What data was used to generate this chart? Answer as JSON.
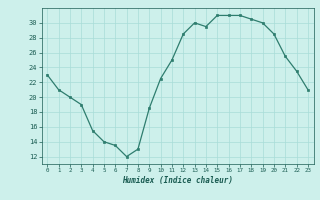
{
  "x": [
    0,
    1,
    2,
    3,
    4,
    5,
    6,
    7,
    8,
    9,
    10,
    11,
    12,
    13,
    14,
    15,
    16,
    17,
    18,
    19,
    20,
    21,
    22,
    23
  ],
  "y": [
    23,
    21,
    20,
    19,
    15.5,
    14,
    13.5,
    12,
    13,
    18.5,
    22.5,
    25,
    28.5,
    30,
    29.5,
    31,
    31,
    31,
    30.5,
    30,
    28.5,
    25.5,
    23.5,
    21
  ],
  "xlabel": "Humidex (Indice chaleur)",
  "xlim": [
    -0.5,
    23.5
  ],
  "ylim": [
    11,
    32
  ],
  "yticks": [
    12,
    14,
    16,
    18,
    20,
    22,
    24,
    26,
    28,
    30
  ],
  "xticks": [
    0,
    1,
    2,
    3,
    4,
    5,
    6,
    7,
    8,
    9,
    10,
    11,
    12,
    13,
    14,
    15,
    16,
    17,
    18,
    19,
    20,
    21,
    22,
    23
  ],
  "line_color": "#2e7d6e",
  "marker_color": "#2e7d6e",
  "bg_color": "#cdf0eb",
  "grid_color": "#a8ddd8",
  "text_color": "#1a5c52"
}
